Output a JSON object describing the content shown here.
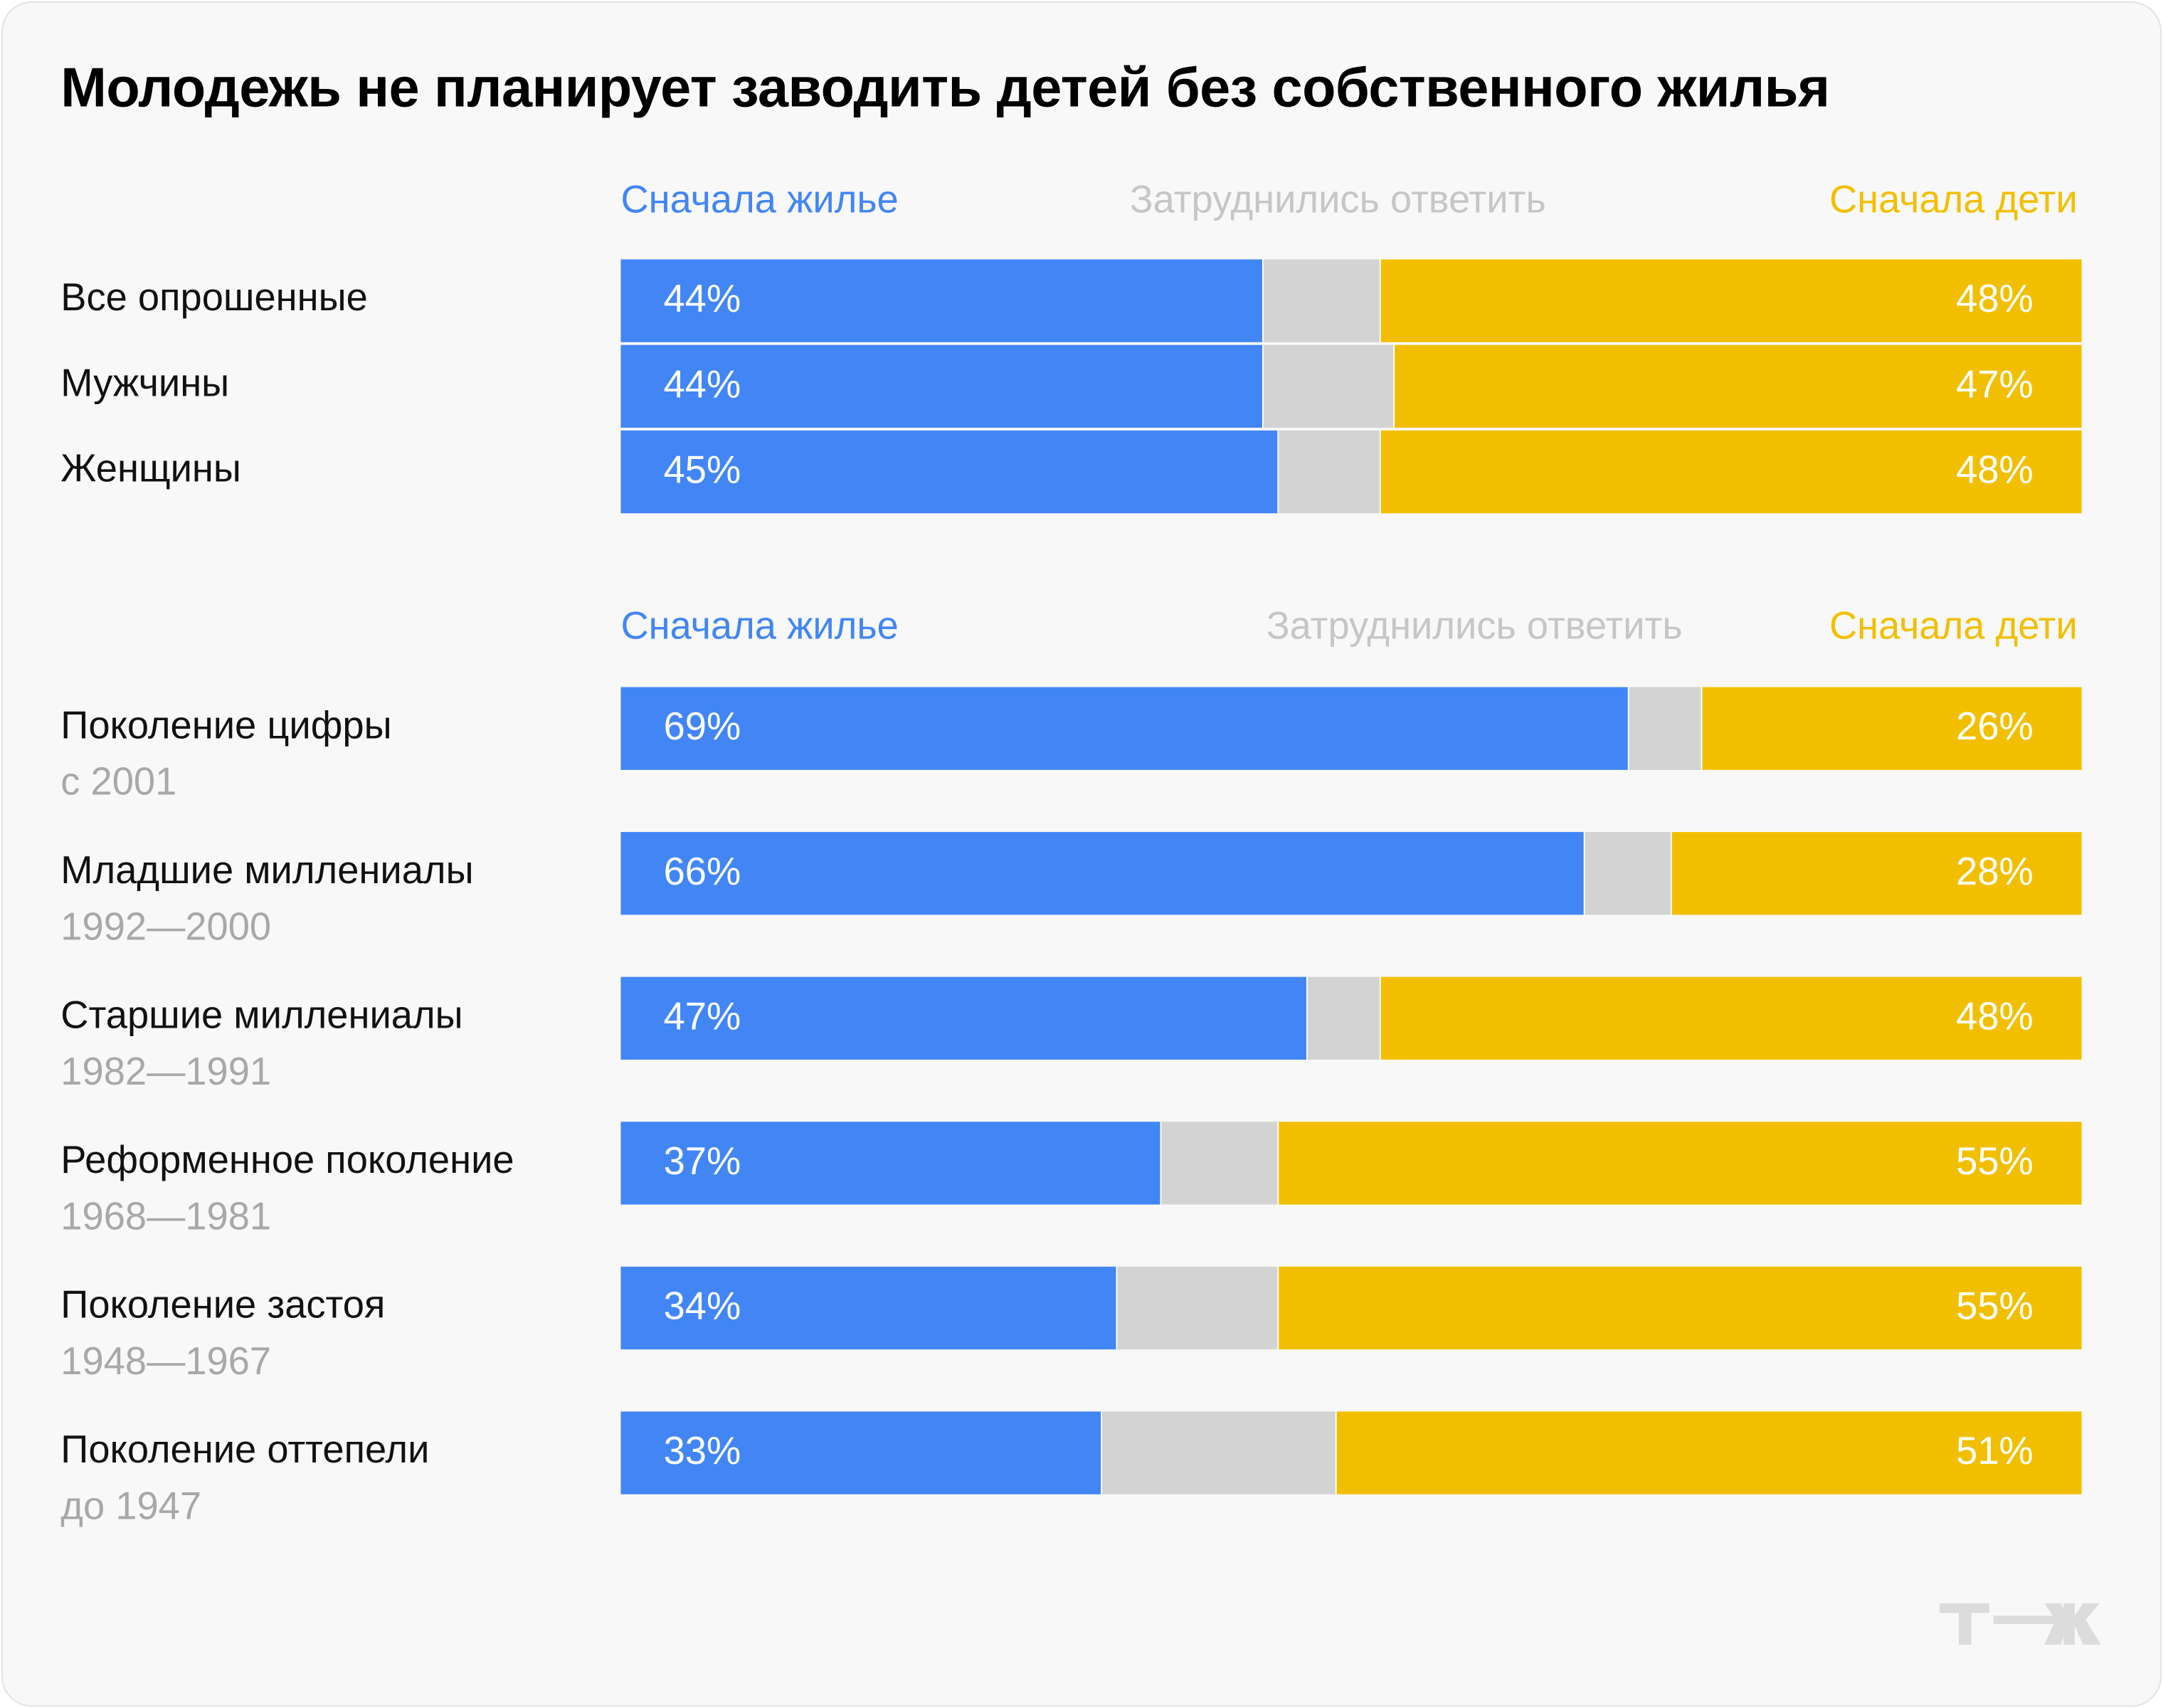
{
  "title": "Молодежь не планирует заводить детей без собственного жилья",
  "colors": {
    "housing_first": "#4286f5",
    "hard_to_say": "#d3d3d3",
    "children_first": "#f2bf00",
    "background": "#f8f8f8"
  },
  "logo_text": "т—ж",
  "chart_data": [
    {
      "type": "bar",
      "orientation": "horizontal",
      "stacked": true,
      "normalized_to": 100,
      "legend_position": "top",
      "series_names": [
        "Сначала жилье",
        "Затруднились ответить",
        "Сначала дети"
      ],
      "categories": [
        "Все опрошенные",
        "Мужчины",
        "Женщины"
      ],
      "series": [
        {
          "name": "Сначала жилье",
          "values": [
            44,
            44,
            45
          ],
          "labels": [
            "44%",
            "44%",
            "45%"
          ]
        },
        {
          "name": "Затруднились ответить",
          "values": [
            8,
            9,
            7
          ]
        },
        {
          "name": "Сначала дети",
          "values": [
            48,
            47,
            48
          ],
          "labels": [
            "48%",
            "47%",
            "48%"
          ]
        }
      ]
    },
    {
      "type": "bar",
      "orientation": "horizontal",
      "stacked": true,
      "normalized_to": 100,
      "legend_position": "top",
      "series_names": [
        "Сначала жилье",
        "Затруднились ответить",
        "Сначала дети"
      ],
      "categories": [
        "Поколение цифры",
        "Младшие миллениалы",
        "Старшие миллениалы",
        "Реформенное поколение",
        "Поколение застоя",
        "Поколение оттепели"
      ],
      "category_subtitles": [
        "с 2001",
        "1992—2000",
        "1982—1991",
        "1968—1981",
        "1948—1967",
        "до 1947"
      ],
      "series": [
        {
          "name": "Сначала жилье",
          "values": [
            69,
            66,
            47,
            37,
            34,
            33
          ],
          "labels": [
            "69%",
            "66%",
            "47%",
            "37%",
            "34%",
            "33%"
          ]
        },
        {
          "name": "Затруднились ответить",
          "values": [
            5,
            6,
            5,
            8,
            11,
            16
          ]
        },
        {
          "name": "Сначала дети",
          "values": [
            26,
            28,
            48,
            55,
            55,
            51
          ],
          "labels": [
            "26%",
            "28%",
            "48%",
            "55%",
            "55%",
            "51%"
          ]
        }
      ]
    }
  ]
}
